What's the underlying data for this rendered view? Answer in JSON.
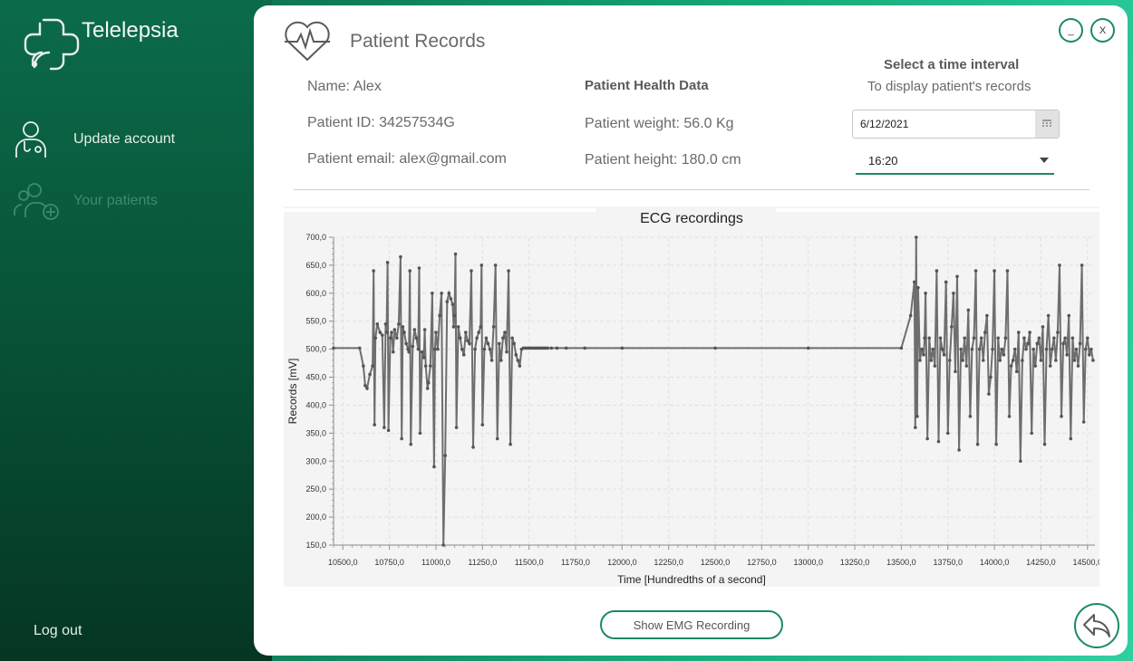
{
  "app": {
    "title": "Telelepsia"
  },
  "sidebar": {
    "items": [
      {
        "label": "Update account",
        "icon": "doctor-icon",
        "enabled": true
      },
      {
        "label": "Your patients",
        "icon": "add-patients-icon",
        "enabled": false
      }
    ],
    "logout_label": "Log out"
  },
  "header": {
    "title": "Patient Records",
    "minimize_label": "_",
    "close_label": "X"
  },
  "patient": {
    "name": "Name: Alex",
    "id": "Patient ID: 34257534G",
    "email": "Patient email: alex@gmail.com"
  },
  "health": {
    "title": "Patient Health Data",
    "weight": "Patient weight: 56.0 Kg",
    "height": "Patient height: 180.0 cm"
  },
  "interval": {
    "title": "Select a time interval",
    "subtitle": "To display patient's records",
    "date_value": "6/12/2021",
    "time_value": "16:20"
  },
  "buttons": {
    "show_emg": "Show EMG Recording"
  },
  "colors": {
    "accent": "#1b8a64",
    "sidebar_top": "#0b6b4b",
    "sidebar_bottom": "#053623",
    "series": "#6e6e6e"
  },
  "chart_data": {
    "type": "line",
    "title": "ECG recordings",
    "xlabel": "Time [Hundredths of a second]",
    "ylabel": "Records [mV]",
    "xlim": [
      10450,
      14540
    ],
    "ylim": [
      150,
      700
    ],
    "xticks": [
      10500,
      10750,
      11000,
      11250,
      11500,
      11750,
      12000,
      12250,
      12500,
      12750,
      13000,
      13250,
      13500,
      13750,
      14000,
      14250,
      14500
    ],
    "xtick_labels": [
      "10500,0",
      "10750,0",
      "11000,0",
      "11250,0",
      "11500,0",
      "11750,0",
      "12000,0",
      "12250,0",
      "12500,0",
      "12750,0",
      "13000,0",
      "13250,0",
      "13500,0",
      "13750,0",
      "14000,0",
      "14250,0",
      "14500,0"
    ],
    "yticks": [
      150,
      200,
      250,
      300,
      350,
      400,
      450,
      500,
      550,
      600,
      650,
      700
    ],
    "ytick_labels": [
      "150,0",
      "200,0",
      "250,0",
      "300,0",
      "350,0",
      "400,0",
      "450,0",
      "500,0",
      "550,0",
      "600,0",
      "650,0",
      "700,0"
    ],
    "grid": true,
    "legend": "none",
    "series": [
      {
        "x": [
          10450,
          10590,
          10610,
          10620,
          10630,
          10645,
          10660,
          10665,
          10670,
          10675,
          10685,
          10700,
          10712,
          10722,
          10730,
          10735,
          10740,
          10745,
          10755,
          10762,
          10770,
          10778,
          10790,
          10800,
          10810,
          10816,
          10822,
          10830,
          10840,
          10850,
          10855,
          10860,
          10865,
          10875,
          10885,
          10895,
          10905,
          10910,
          10915,
          10925,
          10935,
          10940,
          10945,
          10955,
          10960,
          10970,
          10980,
          10990,
          10995,
          11000,
          11010,
          11020,
          11030,
          11040,
          11050,
          11060,
          11070,
          11080,
          11090,
          11095,
          11100,
          11105,
          11110,
          11120,
          11130,
          11140,
          11150,
          11160,
          11170,
          11180,
          11190,
          11200,
          11210,
          11220,
          11230,
          11240,
          11245,
          11250,
          11260,
          11270,
          11280,
          11290,
          11300,
          11310,
          11320,
          11330,
          11340,
          11350,
          11360,
          11370,
          11380,
          11390,
          11400,
          11410,
          11420,
          11430,
          11440,
          11450,
          11460,
          11470,
          11480,
          11490,
          11500,
          11510,
          11520,
          11530,
          11540,
          11550,
          11560,
          11570,
          11580,
          11590,
          11600,
          11620,
          11650,
          11700,
          11800,
          12000,
          12500,
          13000,
          13500,
          13550,
          13570,
          13575,
          13580,
          13585,
          13590,
          13600,
          13610,
          13620,
          13625,
          13630,
          13640,
          13650,
          13660,
          13670,
          13680,
          13690,
          13700,
          13710,
          13720,
          13730,
          13740,
          13750,
          13760,
          13770,
          13780,
          13790,
          13800,
          13810,
          13820,
          13830,
          13840,
          13850,
          13860,
          13870,
          13880,
          13890,
          13900,
          13910,
          13920,
          13930,
          13940,
          13950,
          13960,
          13970,
          13980,
          13990,
          14000,
          14010,
          14020,
          14030,
          14040,
          14050,
          14060,
          14070,
          14080,
          14090,
          14100,
          14110,
          14120,
          14130,
          14140,
          14150,
          14160,
          14170,
          14180,
          14190,
          14200,
          14210,
          14220,
          14230,
          14240,
          14250,
          14260,
          14270,
          14280,
          14290,
          14300,
          14310,
          14320,
          14330,
          14340,
          14350,
          14360,
          14370,
          14380,
          14390,
          14400,
          14410,
          14420,
          14430,
          14440,
          14450,
          14460,
          14470,
          14480,
          14490,
          14500,
          14510,
          14520,
          14530
        ],
        "y": [
          502,
          502,
          470,
          435,
          430,
          455,
          470,
          640,
          365,
          520,
          545,
          530,
          525,
          360,
          545,
          530,
          655,
          355,
          520,
          530,
          495,
          535,
          520,
          545,
          665,
          340,
          540,
          530,
          510,
          500,
          495,
          640,
          330,
          505,
          535,
          520,
          500,
          645,
          350,
          495,
          485,
          535,
          470,
          430,
          440,
          470,
          600,
          290,
          500,
          530,
          500,
          560,
          600,
          150,
          310,
          585,
          600,
          590,
          580,
          540,
          560,
          670,
          360,
          540,
          520,
          500,
          490,
          530,
          515,
          510,
          640,
          325,
          500,
          520,
          530,
          540,
          650,
          365,
          500,
          520,
          510,
          500,
          480,
          540,
          650,
          340,
          510,
          480,
          520,
          530,
          495,
          640,
          330,
          520,
          510,
          490,
          480,
          470,
          500,
          502,
          502,
          502,
          502,
          502,
          502,
          502,
          502,
          502,
          502,
          502,
          502,
          502,
          502,
          502,
          502,
          502,
          502,
          502,
          502,
          502,
          502,
          560,
          620,
          360,
          700,
          380,
          610,
          480,
          500,
          490,
          520,
          600,
          340,
          520,
          480,
          500,
          470,
          640,
          335,
          520,
          500,
          490,
          620,
          350,
          480,
          540,
          600,
          460,
          630,
          320,
          500,
          480,
          520,
          470,
          570,
          380,
          500,
          520,
          640,
          330,
          500,
          520,
          480,
          530,
          560,
          420,
          450,
          500,
          640,
          330,
          520,
          480,
          500,
          490,
          520,
          640,
          380,
          470,
          480,
          500,
          460,
          530,
          300,
          480,
          520,
          500,
          510,
          530,
          350,
          500,
          470,
          510,
          520,
          480,
          540,
          330,
          500,
          560,
          470,
          500,
          520,
          480,
          530,
          650,
          380,
          510,
          520,
          490,
          560,
          340,
          520,
          480,
          500,
          470,
          510,
          650,
          370,
          500,
          520,
          490,
          500,
          480
        ]
      }
    ]
  }
}
